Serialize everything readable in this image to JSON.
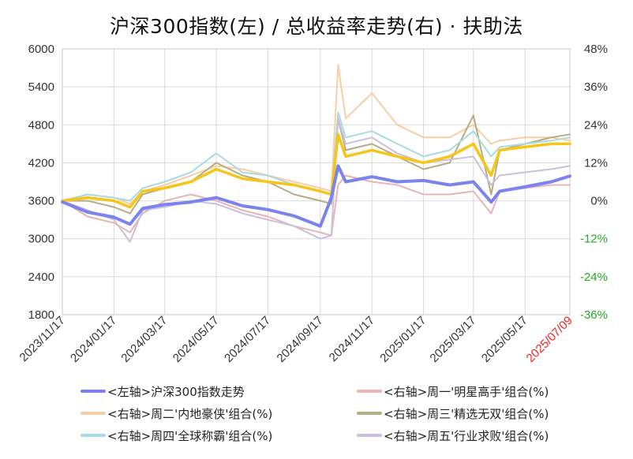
{
  "chart_data": {
    "type": "line",
    "title": "沪深300指数(左)  /  总收益率走势(右) · 扶助法",
    "left_axis": {
      "min": 1800,
      "max": 6000,
      "ticks": [
        "6000",
        "5400",
        "4800",
        "4200",
        "3600",
        "3000",
        "2400",
        "1800"
      ],
      "tick_values": [
        6000,
        5400,
        4800,
        4200,
        3600,
        3000,
        2400,
        1800
      ]
    },
    "right_axis": {
      "min": -0.36,
      "max": 0.48,
      "ticks": [
        {
          "label": "48%",
          "value": 0.48,
          "color": "#333333"
        },
        {
          "label": "36%",
          "value": 0.36,
          "color": "#333333"
        },
        {
          "label": "24%",
          "value": 0.24,
          "color": "#333333"
        },
        {
          "label": "12%",
          "value": 0.12,
          "color": "#333333"
        },
        {
          "label": "0%",
          "value": 0.0,
          "color": "#333333"
        },
        {
          "label": "-12%",
          "value": -0.12,
          "color": "#22aa22"
        },
        {
          "label": "-24%",
          "value": -0.24,
          "color": "#22aa22"
        },
        {
          "label": "-36%",
          "value": -0.36,
          "color": "#22aa22"
        }
      ]
    },
    "x_ticks": [
      {
        "label": "2023/11/17",
        "color": "#333333"
      },
      {
        "label": "2024/01/17",
        "color": "#333333"
      },
      {
        "label": "2024/03/17",
        "color": "#333333"
      },
      {
        "label": "2024/05/17",
        "color": "#333333"
      },
      {
        "label": "2024/07/17",
        "color": "#333333"
      },
      {
        "label": "2024/09/17",
        "color": "#333333"
      },
      {
        "label": "2024/11/17",
        "color": "#333333"
      },
      {
        "label": "2025/01/17",
        "color": "#333333"
      },
      {
        "label": "2025/03/17",
        "color": "#333333"
      },
      {
        "label": "2025/05/17",
        "color": "#333333"
      },
      {
        "label": "2025/07/09",
        "color": "#ee2222"
      }
    ],
    "x_dates": [
      "2023/11/17",
      "2023/12/17",
      "2024/01/17",
      "2024/02/05",
      "2024/02/20",
      "2024/03/17",
      "2024/04/17",
      "2024/05/17",
      "2024/06/17",
      "2024/07/17",
      "2024/08/17",
      "2024/09/17",
      "2024/09/30",
      "2024/10/08",
      "2024/10/17",
      "2024/11/17",
      "2024/12/17",
      "2025/01/17",
      "2025/02/17",
      "2025/03/17",
      "2025/04/07",
      "2025/04/17",
      "2025/05/17",
      "2025/06/17",
      "2025/07/09"
    ],
    "series": [
      {
        "name": "<左轴>沪深300指数走势",
        "axis": "left",
        "color": "#7b83ee",
        "width": 4,
        "values": [
          3580,
          3420,
          3340,
          3230,
          3480,
          3540,
          3580,
          3650,
          3520,
          3460,
          3360,
          3200,
          3650,
          4150,
          3900,
          3980,
          3900,
          3920,
          3850,
          3900,
          3580,
          3750,
          3820,
          3900,
          3990
        ]
      },
      {
        "name": "<右轴>周一'明星高手'组合(%)",
        "axis": "right",
        "color": "#e8b4b4",
        "width": 2,
        "values": [
          0.0,
          -0.05,
          -0.07,
          -0.1,
          -0.04,
          0.0,
          0.02,
          0.0,
          -0.03,
          -0.05,
          -0.08,
          -0.1,
          -0.11,
          0.05,
          0.08,
          0.06,
          0.05,
          0.02,
          0.02,
          0.03,
          -0.04,
          0.03,
          0.04,
          0.05,
          0.05
        ]
      },
      {
        "name": "<右轴>周二'内地豪侠'组合(%)",
        "axis": "right",
        "color": "#f7cfa6",
        "width": 2,
        "values": [
          0.0,
          0.02,
          0.01,
          -0.01,
          0.03,
          0.05,
          0.08,
          0.11,
          0.1,
          0.08,
          0.06,
          0.04,
          0.03,
          0.43,
          0.26,
          0.34,
          0.24,
          0.2,
          0.2,
          0.24,
          0.18,
          0.19,
          0.2,
          0.2,
          0.19
        ]
      },
      {
        "name": "<右轴>周三'精选无双'组合(%)",
        "axis": "right",
        "color": "#b5ad86",
        "width": 2,
        "values": [
          0.0,
          0.0,
          -0.02,
          -0.04,
          0.02,
          0.04,
          0.06,
          0.12,
          0.08,
          0.06,
          0.02,
          0.0,
          -0.01,
          0.26,
          0.16,
          0.18,
          0.14,
          0.1,
          0.12,
          0.27,
          0.02,
          0.16,
          0.18,
          0.2,
          0.21
        ]
      },
      {
        "name": "<右轴>周四'全球称霸'组合(%)",
        "axis": "right",
        "color": "#a9dbe0",
        "width": 2,
        "values": [
          0.0,
          0.02,
          0.01,
          0.0,
          0.04,
          0.06,
          0.09,
          0.15,
          0.09,
          0.08,
          0.05,
          0.03,
          0.02,
          0.28,
          0.2,
          0.22,
          0.18,
          0.14,
          0.16,
          0.22,
          0.14,
          0.17,
          0.18,
          0.19,
          0.2
        ]
      },
      {
        "name": "<右轴>周五'行业求败'组合(%)",
        "axis": "right",
        "color": "#cbc0dc",
        "width": 2,
        "values": [
          0.0,
          -0.03,
          -0.06,
          -0.13,
          -0.03,
          -0.02,
          0.0,
          -0.01,
          -0.04,
          -0.06,
          -0.08,
          -0.12,
          -0.11,
          0.26,
          0.18,
          0.2,
          0.15,
          0.12,
          0.13,
          0.14,
          0.05,
          0.08,
          0.09,
          0.1,
          0.11
        ]
      },
      {
        "name": "",
        "axis": "right",
        "color": "#f5c518",
        "width": 3.5,
        "values": [
          0.0,
          0.01,
          0.0,
          -0.02,
          0.03,
          0.04,
          0.06,
          0.1,
          0.07,
          0.06,
          0.05,
          0.03,
          0.02,
          0.21,
          0.14,
          0.16,
          0.14,
          0.12,
          0.14,
          0.18,
          0.08,
          0.16,
          0.17,
          0.18,
          0.18
        ]
      }
    ],
    "grid": true,
    "legend_placement": "bottom"
  },
  "legend": [
    {
      "label": "<左轴>沪深300指数走势",
      "color": "#7b83ee"
    },
    {
      "label": "<右轴>周一'明星高手'组合(%)",
      "color": "#e8b4b4"
    },
    {
      "label": "<右轴>周二'内地豪侠'组合(%)",
      "color": "#f7cfa6"
    },
    {
      "label": "<右轴>周三'精选无双'组合(%)",
      "color": "#b5ad86"
    },
    {
      "label": "<右轴>周四'全球称霸'组合(%)",
      "color": "#a9dbe0"
    },
    {
      "label": "<右轴>周五'行业求败'组合(%)",
      "color": "#cbc0dc"
    }
  ]
}
